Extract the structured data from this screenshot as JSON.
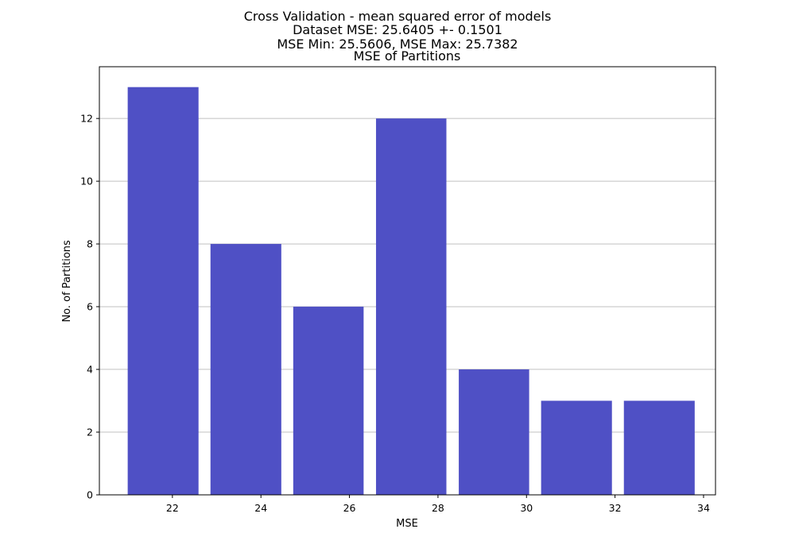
{
  "chart_data": {
    "type": "bar",
    "title_lines": [
      "Cross Validation - mean squared error of models",
      "Dataset MSE: 25.6405 +- 0.1501",
      "MSE Min: 25.5606, MSE Max: 25.7382",
      "MSE of Partitions"
    ],
    "xlabel": "MSE",
    "ylabel": "No. of Partitions",
    "xlim": [
      20.35,
      34.27
    ],
    "ylim": [
      0,
      13.65
    ],
    "x_ticks": [
      22,
      24,
      26,
      28,
      30,
      32,
      34
    ],
    "y_ticks": [
      0,
      2,
      4,
      6,
      8,
      10,
      12
    ],
    "grid": "horizontal",
    "bar_color": "#4f50c5",
    "bars": [
      {
        "x_start": 20.99,
        "x_end": 22.59,
        "value": 13
      },
      {
        "x_start": 22.86,
        "x_end": 24.46,
        "value": 8
      },
      {
        "x_start": 24.73,
        "x_end": 26.32,
        "value": 6
      },
      {
        "x_start": 26.6,
        "x_end": 28.19,
        "value": 12
      },
      {
        "x_start": 28.47,
        "x_end": 30.06,
        "value": 4
      },
      {
        "x_start": 30.33,
        "x_end": 31.93,
        "value": 3
      },
      {
        "x_start": 32.2,
        "x_end": 33.8,
        "value": 3
      }
    ]
  }
}
